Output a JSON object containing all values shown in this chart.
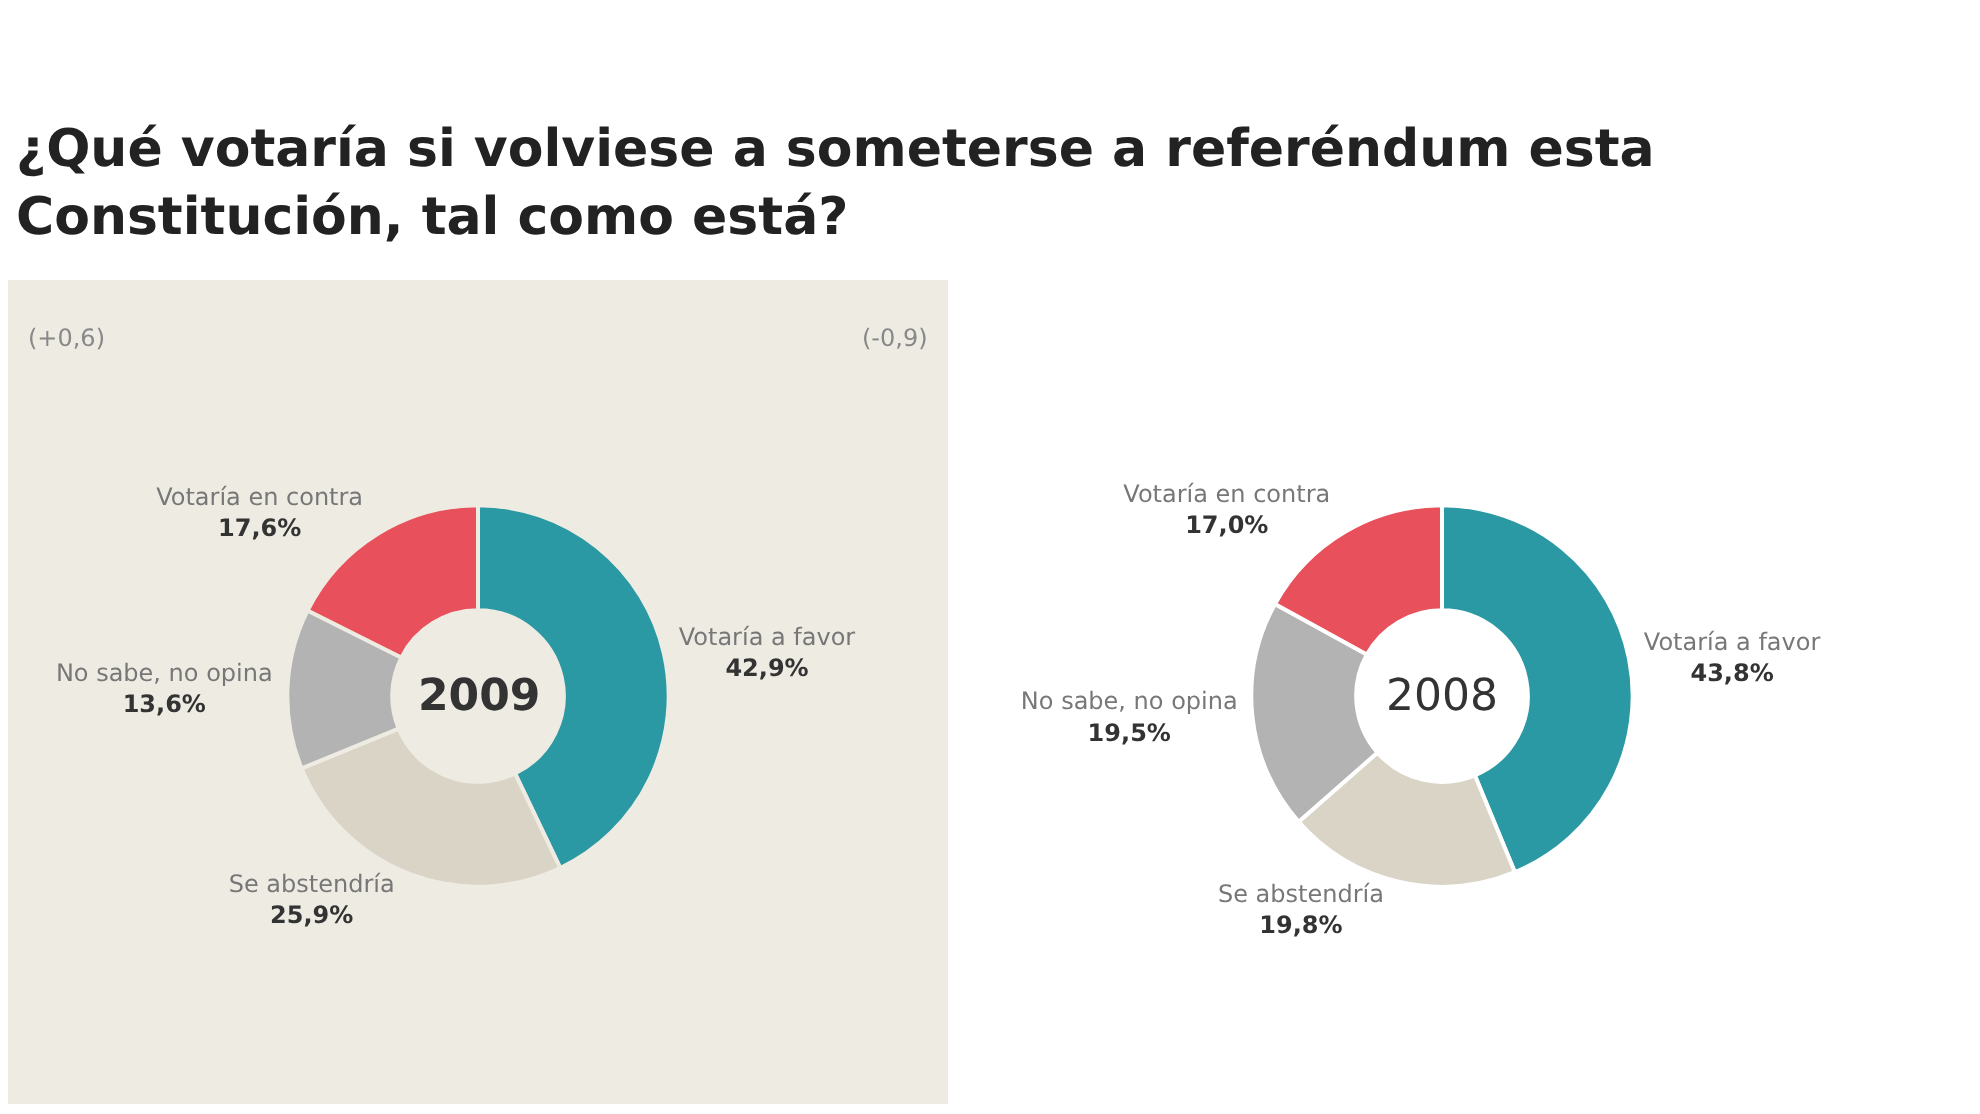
{
  "chart_data": [
    {
      "type": "donut",
      "title": "¿Qué votaría si volviese a someterse a referéndum esta Constitución, tal como está?",
      "categories": [
        "Votaría a favor",
        "Se abstendría",
        "No sabe, no opina",
        "Votaría en contra"
      ],
      "values": [
        42.9,
        25.9,
        13.6,
        17.6
      ],
      "value_labels": [
        "42,9%",
        "25,9%",
        "13,6%",
        "17,6%"
      ],
      "colors": [
        "#2a99a4",
        "#d9d4c6",
        "#b3b3b3",
        "#e8505b"
      ],
      "annotations": [
        "2009",
        "(-0,9)",
        "(+0,6)"
      ]
    },
    {
      "type": "donut",
      "categories": [
        "Votaría a favor",
        "Se abstendría",
        "No sabe, no opina",
        "Votaría en contra"
      ],
      "values": [
        43.8,
        19.8,
        19.5,
        17.0
      ],
      "value_labels": [
        "43,8%",
        "19,8%",
        "19,5%",
        "17,0%"
      ],
      "colors": [
        "#2a99a4",
        "#d9d4c6",
        "#b3b3b3",
        "#e8505b"
      ],
      "annotations": [
        "2008"
      ]
    }
  ]
}
